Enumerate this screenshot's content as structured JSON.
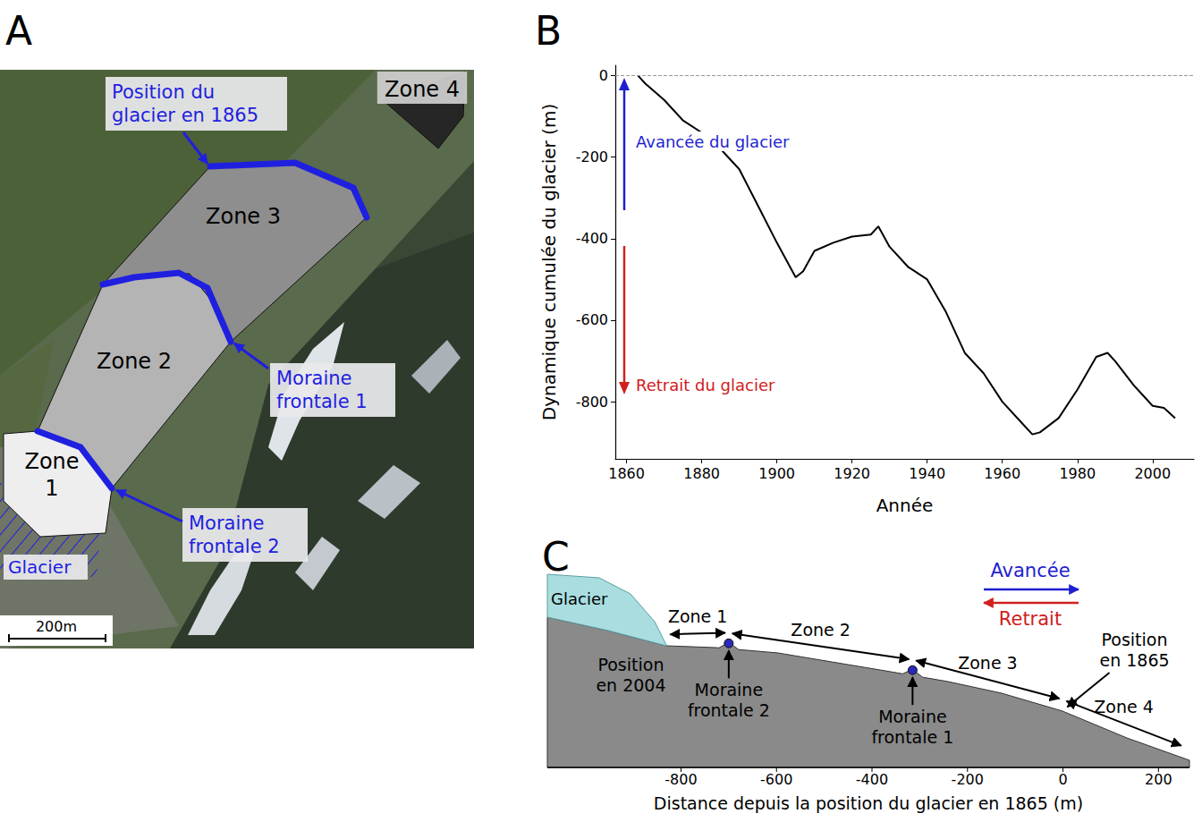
{
  "panel_a": {
    "letter": "A",
    "zones": [
      {
        "label": "Zone 1",
        "color": "#eeeeee"
      },
      {
        "label": "Zone 2",
        "color": "#b4b4b4"
      },
      {
        "label": "Zone 3",
        "color": "#8e8e8e"
      },
      {
        "label": "Zone 4",
        "color": "#262626"
      }
    ],
    "lines": [
      {
        "label": "Position du glacier en 1865",
        "color": "#1f1fe0"
      },
      {
        "label": "Moraine frontale 1",
        "color": "#1f1fe0"
      },
      {
        "label": "Moraine frontale 2",
        "color": "#1f1fe0"
      }
    ],
    "glacier_label": "Glacier",
    "scale_bar": "200m"
  },
  "chart_data": {
    "letter": "B",
    "type": "line",
    "x_label": "Année",
    "y_label": "Dynamique cumulée du glacier (m)",
    "x": [
      1863,
      1865,
      1870,
      1875,
      1880,
      1885,
      1890,
      1895,
      1900,
      1905,
      1907,
      1910,
      1915,
      1920,
      1925,
      1927,
      1930,
      1935,
      1940,
      1945,
      1950,
      1955,
      1960,
      1965,
      1968,
      1970,
      1975,
      1980,
      1985,
      1988,
      1990,
      1995,
      2000,
      2003,
      2006
    ],
    "values": [
      0,
      -20,
      -60,
      -110,
      -140,
      -180,
      -230,
      -320,
      -410,
      -495,
      -480,
      -430,
      -410,
      -395,
      -390,
      -370,
      -420,
      -470,
      -500,
      -580,
      -680,
      -730,
      -800,
      -850,
      -880,
      -875,
      -840,
      -770,
      -690,
      -680,
      -700,
      -760,
      -810,
      -815,
      -840
    ],
    "color": "#000000",
    "xlim": [
      1857,
      2011
    ],
    "xticks": [
      1860,
      1880,
      1900,
      1920,
      1940,
      1960,
      1980,
      2000
    ],
    "ylim": [
      -940,
      25
    ],
    "yticks": [
      -800,
      -600,
      -400,
      -200,
      0
    ],
    "grid": false,
    "reference_y": 0,
    "annotations": [
      {
        "text": "Avancée du glacier",
        "color": "#1f1fd0"
      },
      {
        "text": "Retrait du glacier",
        "color": "#d02020"
      }
    ]
  },
  "panel_c": {
    "letter": "C",
    "x_label": "Distance depuis la position du glacier en 1865 (m)",
    "xlim": [
      -1080,
      265
    ],
    "xticks": [
      -800,
      -600,
      -400,
      -200,
      0,
      200
    ],
    "glacier_label": "Glacier",
    "glacier_color": "#a9dde0",
    "ground_color": "#8a8a8a",
    "directions": [
      {
        "text": "Avancée",
        "color": "#1f1fd0"
      },
      {
        "text": "Retrait",
        "color": "#d02020"
      }
    ],
    "markers": [
      {
        "label": "Position en 2004",
        "x": -830
      },
      {
        "label": "Moraine frontale 2",
        "x": -700,
        "marker": "dot"
      },
      {
        "label": "Moraine frontale 1",
        "x": -315,
        "marker": "dot"
      },
      {
        "label": "Position en 1865",
        "x": 0
      }
    ],
    "zones": [
      {
        "label": "Zone 1",
        "from": -830,
        "to": -700
      },
      {
        "label": "Zone 2",
        "from": -700,
        "to": -315
      },
      {
        "label": "Zone 3",
        "from": -315,
        "to": 0
      },
      {
        "label": "Zone 4",
        "from": 0,
        "to": 255
      }
    ]
  }
}
